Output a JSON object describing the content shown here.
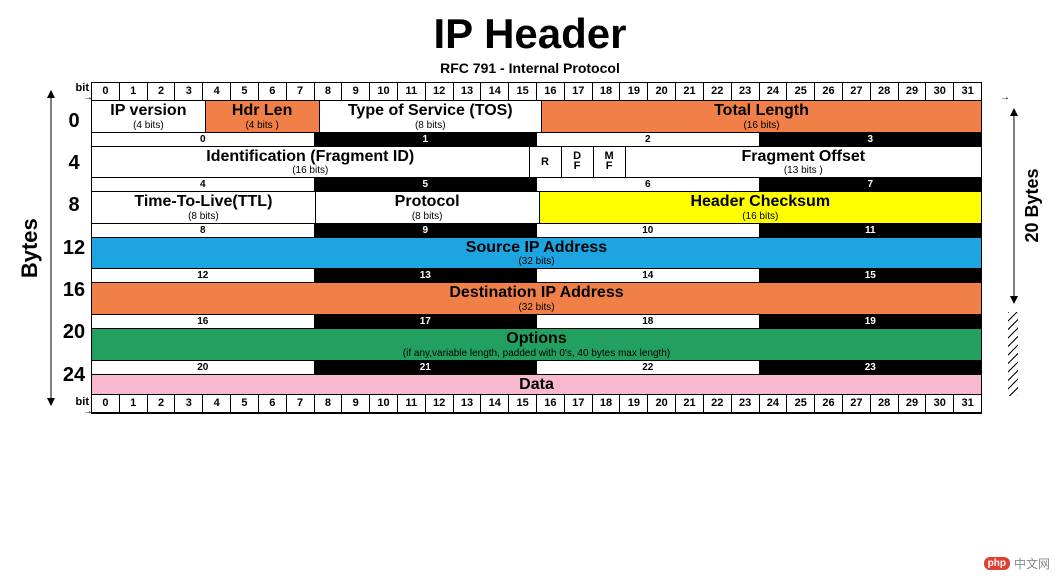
{
  "title": {
    "text": "IP Header",
    "fontsize": 42
  },
  "subtitle": {
    "text": "RFC 791 - Internal Protocol",
    "fontsize": 14
  },
  "axis_labels": {
    "left": "Bytes",
    "right_top": "20 Bytes",
    "top": "bit",
    "bottom": "bit"
  },
  "bit_count": 32,
  "byte_offsets": [
    0,
    4,
    8,
    12,
    16,
    20,
    24
  ],
  "offset_fontsize": 20,
  "field_fontsize": 16,
  "colors": {
    "white": "#ffffff",
    "orange": "#f08048",
    "yellow": "#ffff00",
    "blue": "#1ca5e0",
    "green": "#22a060",
    "pink": "#f8b8d0",
    "black": "#000000"
  },
  "rows": [
    {
      "fields": [
        {
          "name": "IP version",
          "bits_label": "(4 bits)",
          "span": 4,
          "color": "white"
        },
        {
          "name": "Hdr Len",
          "bits_label": "(4 bits )",
          "span": 4,
          "color": "orange"
        },
        {
          "name": "Type of Service (TOS)",
          "bits_label": "(8 bits)",
          "span": 8,
          "color": "white"
        },
        {
          "name": "Total Length",
          "bits_label": "(16 bits)",
          "span": 16,
          "color": "orange"
        }
      ],
      "byte_labels": [
        0,
        1,
        2,
        3
      ],
      "byte_black": [
        false,
        true,
        false,
        true
      ]
    },
    {
      "fields": [
        {
          "name": "Identification (Fragment ID)",
          "bits_label": "(16 bits)",
          "span": 16,
          "color": "white"
        },
        {
          "name": "R",
          "bits_label": "",
          "span": 1,
          "color": "white"
        },
        {
          "name": "D\nF",
          "bits_label": "",
          "span": 1,
          "color": "white",
          "stack": true
        },
        {
          "name": "M\nF",
          "bits_label": "",
          "span": 1,
          "color": "white",
          "stack": true
        },
        {
          "name": "Fragment Offset",
          "bits_label": "(13 bits )",
          "span": 13,
          "color": "white"
        }
      ],
      "byte_labels": [
        4,
        5,
        6,
        7
      ],
      "byte_black": [
        false,
        true,
        false,
        true
      ]
    },
    {
      "fields": [
        {
          "name": "Time-To-Live(TTL)",
          "bits_label": "(8 bits)",
          "span": 8,
          "color": "white"
        },
        {
          "name": "Protocol",
          "bits_label": "(8 bits)",
          "span": 8,
          "color": "white"
        },
        {
          "name": "Header Checksum",
          "bits_label": "(16 bits)",
          "span": 16,
          "color": "yellow"
        }
      ],
      "byte_labels": [
        8,
        9,
        10,
        11
      ],
      "byte_black": [
        false,
        true,
        false,
        true
      ]
    },
    {
      "fields": [
        {
          "name": "Source IP Address",
          "bits_label": "(32 bits)",
          "span": 32,
          "color": "blue"
        }
      ],
      "byte_labels": [
        12,
        13,
        14,
        15
      ],
      "byte_black": [
        false,
        true,
        false,
        true
      ]
    },
    {
      "fields": [
        {
          "name": "Destination IP Address",
          "bits_label": "(32 bits)",
          "span": 32,
          "color": "orange"
        }
      ],
      "byte_labels": [
        16,
        17,
        18,
        19
      ],
      "byte_black": [
        false,
        true,
        false,
        true
      ]
    },
    {
      "fields": [
        {
          "name": "Options",
          "bits_label": "(if any,variable length, padded with 0's, 40 bytes max length)",
          "span": 32,
          "color": "green"
        }
      ],
      "byte_labels": [
        20,
        21,
        22,
        23
      ],
      "byte_black": [
        false,
        true,
        false,
        true
      ]
    },
    {
      "fields": [
        {
          "name": "Data",
          "bits_label": "",
          "span": 32,
          "color": "pink"
        }
      ],
      "byte_labels": null,
      "byte_black": null
    }
  ],
  "right_regions": {
    "top_rows": 5,
    "hatch_rows": 2
  },
  "watermark": {
    "logo": "php",
    "text": "中文网"
  }
}
